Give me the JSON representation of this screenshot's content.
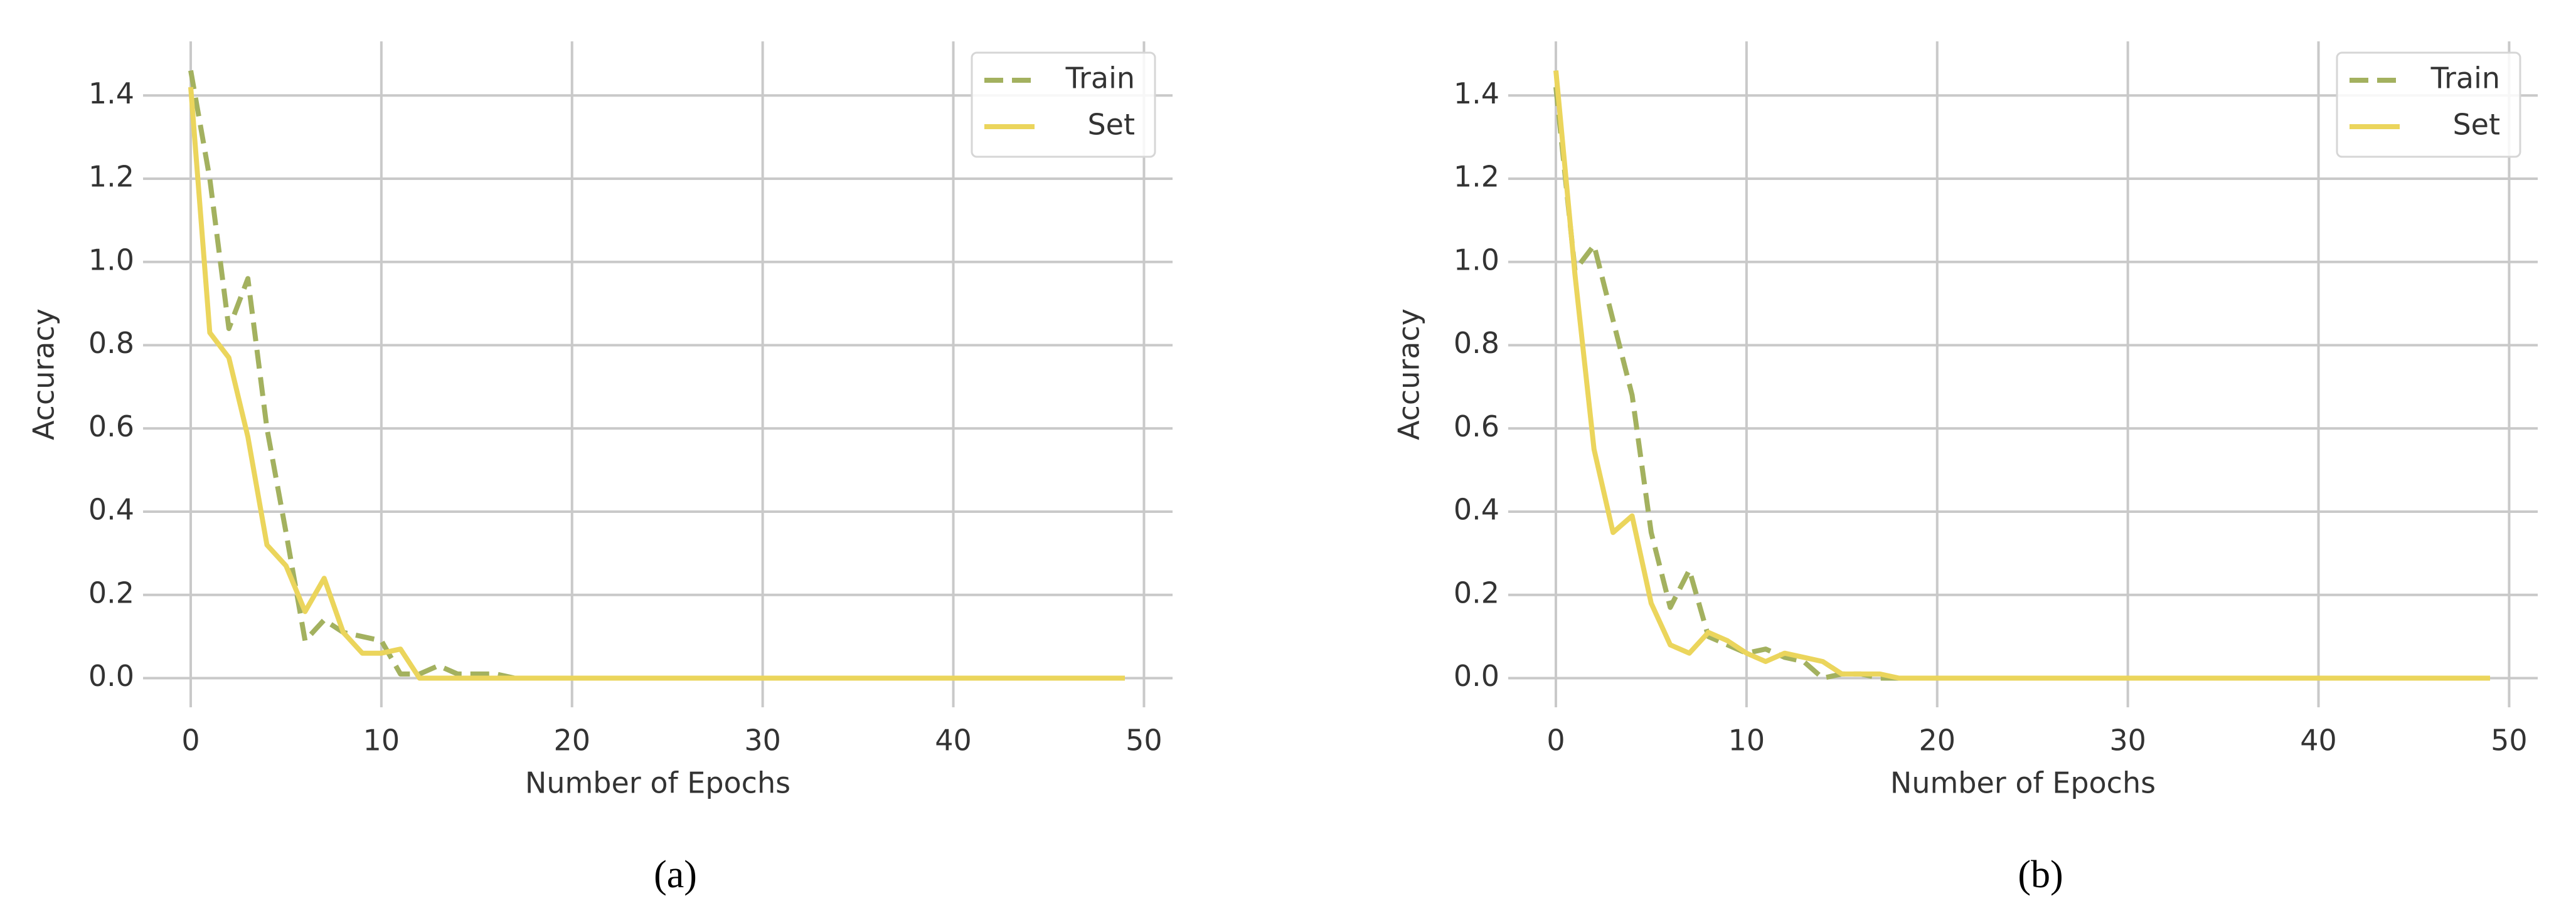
{
  "chart_data": [
    {
      "type": "line",
      "caption": "(a)",
      "x_label": "Number of Epochs",
      "y_label": "Accuracy",
      "x": [
        0,
        1,
        2,
        3,
        4,
        5,
        6,
        7,
        8,
        9,
        10,
        11,
        12,
        13,
        14,
        15,
        16,
        17,
        18,
        19,
        20,
        21,
        22,
        23,
        24,
        25,
        26,
        27,
        28,
        29,
        30,
        31,
        32,
        33,
        34,
        35,
        36,
        37,
        38,
        39,
        40,
        41,
        42,
        43,
        44,
        45,
        46,
        47,
        48,
        49
      ],
      "series": [
        {
          "name": "Train",
          "color": "#a3b15f",
          "linestyle": "dashed",
          "values": [
            1.46,
            1.2,
            0.84,
            0.96,
            0.6,
            0.35,
            0.09,
            0.14,
            0.11,
            0.1,
            0.09,
            0.01,
            0.01,
            0.03,
            0.01,
            0.01,
            0.01,
            0,
            0,
            0,
            0,
            0,
            0,
            0,
            0,
            0,
            0,
            0,
            0,
            0,
            0,
            0,
            0,
            0,
            0,
            0,
            0,
            0,
            0,
            0,
            0,
            0,
            0,
            0,
            0,
            0,
            0,
            0,
            0,
            0
          ]
        },
        {
          "name": "Set",
          "color": "#ebd55c",
          "linestyle": "solid",
          "values": [
            1.42,
            0.83,
            0.77,
            0.58,
            0.32,
            0.27,
            0.16,
            0.24,
            0.11,
            0.06,
            0.06,
            0.07,
            0,
            0,
            0,
            0,
            0,
            0,
            0,
            0,
            0,
            0,
            0,
            0,
            0,
            0,
            0,
            0,
            0,
            0,
            0,
            0,
            0,
            0,
            0,
            0,
            0,
            0,
            0,
            0,
            0,
            0,
            0,
            0,
            0,
            0,
            0,
            0,
            0,
            0
          ]
        }
      ],
      "xlim": [
        -2.5,
        51.5
      ],
      "ylim": [
        -0.07,
        1.53
      ],
      "xticks": [
        0,
        10,
        20,
        30,
        40,
        50
      ],
      "yticks": [
        {
          "value": 0,
          "label": "0.0"
        },
        0.2,
        0.4,
        0.6,
        0.8,
        {
          "value": 1,
          "label": "1.0"
        },
        1.2,
        1.4
      ],
      "grid": true,
      "legend": "upper right"
    },
    {
      "type": "line",
      "caption": "(b)",
      "x_label": "Number of Epochs",
      "y_label": "Accuracy",
      "x": [
        0,
        1,
        2,
        3,
        4,
        5,
        6,
        7,
        8,
        9,
        10,
        11,
        12,
        13,
        14,
        15,
        16,
        17,
        18,
        19,
        20,
        21,
        22,
        23,
        24,
        25,
        26,
        27,
        28,
        29,
        30,
        31,
        32,
        33,
        34,
        35,
        36,
        37,
        38,
        39,
        40,
        41,
        42,
        43,
        44,
        45,
        46,
        47,
        48,
        49
      ],
      "series": [
        {
          "name": "Train",
          "color": "#a3b15f",
          "linestyle": "dashed",
          "values": [
            1.42,
            0.98,
            1.04,
            0.86,
            0.68,
            0.35,
            0.17,
            0.26,
            0.1,
            0.08,
            0.06,
            0.07,
            0.05,
            0.04,
            0,
            0.01,
            0.01,
            0,
            0,
            0,
            0,
            0,
            0,
            0,
            0,
            0,
            0,
            0,
            0,
            0,
            0,
            0,
            0,
            0,
            0,
            0,
            0,
            0,
            0,
            0,
            0,
            0,
            0,
            0,
            0,
            0,
            0,
            0,
            0,
            0
          ]
        },
        {
          "name": "Set",
          "color": "#ebd55c",
          "linestyle": "solid",
          "values": [
            1.46,
            0.97,
            0.55,
            0.35,
            0.39,
            0.18,
            0.08,
            0.06,
            0.11,
            0.09,
            0.06,
            0.04,
            0.06,
            0.05,
            0.04,
            0.01,
            0.01,
            0.01,
            0,
            0,
            0,
            0,
            0,
            0,
            0,
            0,
            0,
            0,
            0,
            0,
            0,
            0,
            0,
            0,
            0,
            0,
            0,
            0,
            0,
            0,
            0,
            0,
            0,
            0,
            0,
            0,
            0,
            0,
            0,
            0
          ]
        }
      ],
      "xlim": [
        -2.5,
        51.5
      ],
      "ylim": [
        -0.07,
        1.53
      ],
      "xticks": [
        0,
        10,
        20,
        30,
        40,
        50
      ],
      "yticks": [
        {
          "value": 0,
          "label": "0.0"
        },
        0.2,
        0.4,
        0.6,
        0.8,
        {
          "value": 1,
          "label": "1.0"
        },
        1.2,
        1.4
      ],
      "grid": true,
      "legend": "upper right"
    }
  ]
}
